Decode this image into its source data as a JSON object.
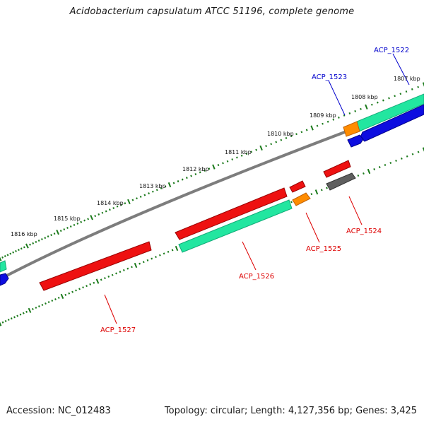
{
  "title": "Acidobacterium capsulatum ATCC 51196, complete genome",
  "footer": {
    "accession": "Accession: NC_012483",
    "summary": "Topology: circular; Length: 4,127,356 bp; Genes: 3,425"
  },
  "colors": {
    "backbone": "#7d7d7d",
    "ticks": "#1b7a1b",
    "red": "#ee1111",
    "teal": "#22e6a0",
    "orange": "#ff8c00",
    "blue": "#0d0de0",
    "gray": "#5f5f5f",
    "label_red": "#dd0000",
    "label_blue": "#0000cc"
  },
  "ruler": {
    "labels": [
      "1807 kbp",
      "1808 kbp",
      "1809 kbp",
      "1810 kbp",
      "1811 kbp",
      "1812 kbp",
      "1813 kbp",
      "1814 kbp",
      "1815 kbp",
      "1816 kbp"
    ]
  },
  "gene_labels": [
    "ACP_1522",
    "ACP_1523",
    "ACP_1524",
    "ACP_1525",
    "ACP_1526",
    "ACP_1527"
  ]
}
